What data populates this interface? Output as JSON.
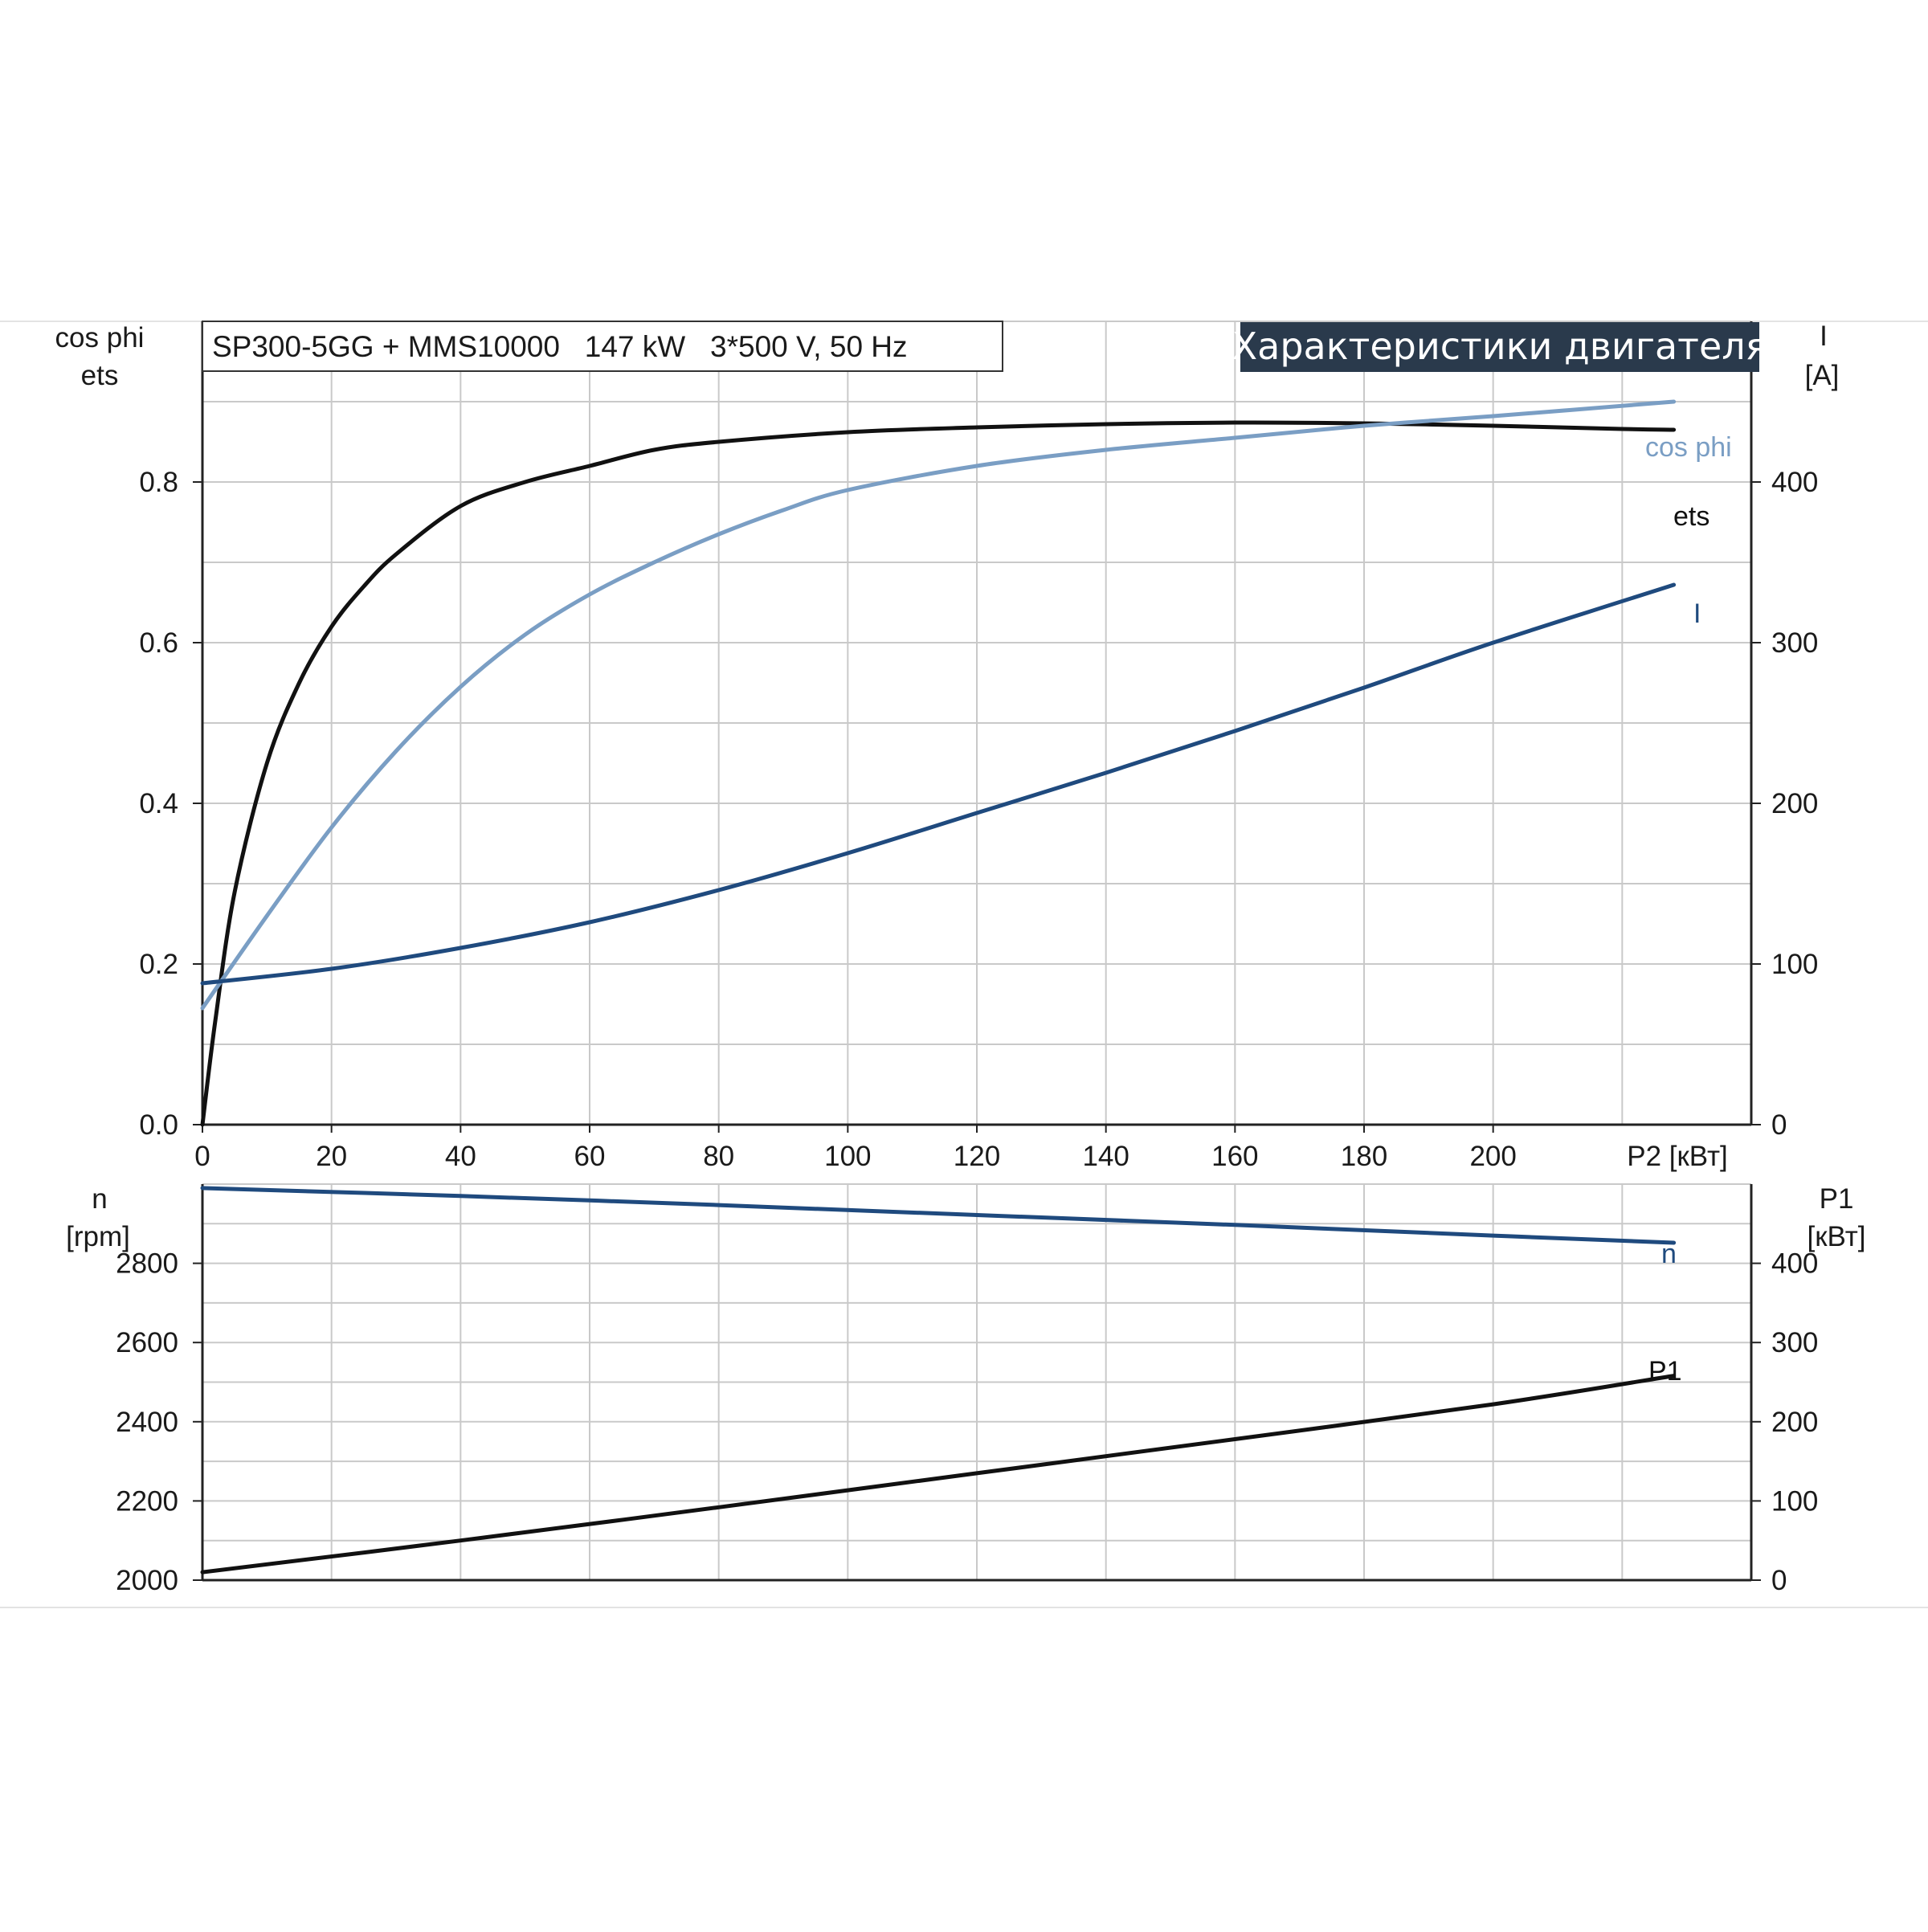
{
  "title_box": "SP300-5GG + MMS10000   147 kW   3*500 V, 50 Hz",
  "badge": "Характеристики двигателя",
  "colors": {
    "black": "#111111",
    "cos_phi": "#7a9ec4",
    "current": "#1f4a7e",
    "speed": "#1f4a7e",
    "power": "#111111",
    "badge_bg": "#2a3a4c",
    "grid": "#c9c9c9"
  },
  "chart_data": [
    {
      "type": "line",
      "x_label": "P2 [кВт]",
      "x_ticks": [
        "0",
        "20",
        "40",
        "60",
        "80",
        "100",
        "120",
        "140",
        "160",
        "180",
        "200"
      ],
      "xlim": [
        0,
        240
      ],
      "left_axis": {
        "label_1": "cos phi",
        "label_2": "ets",
        "ylim": [
          0,
          1.0
        ],
        "ticks": [
          "0.0",
          "0.2",
          "0.4",
          "0.6",
          "0.8"
        ]
      },
      "right_axis": {
        "label_1": "I",
        "label_2": "[A]",
        "ylim": [
          0,
          500
        ],
        "ticks": [
          "0",
          "100",
          "200",
          "300",
          "400"
        ]
      },
      "series": [
        {
          "name": "ets",
          "axis": "left",
          "color_key": "black",
          "x": [
            0,
            2,
            5,
            10,
            15,
            20,
            25,
            30,
            40,
            50,
            60,
            70,
            80,
            100,
            120,
            140,
            160,
            180,
            200,
            220,
            228
          ],
          "y": [
            0.0,
            0.13,
            0.29,
            0.45,
            0.55,
            0.62,
            0.67,
            0.71,
            0.77,
            0.8,
            0.82,
            0.84,
            0.85,
            0.862,
            0.868,
            0.872,
            0.874,
            0.873,
            0.87,
            0.866,
            0.865
          ]
        },
        {
          "name": "cos phi",
          "axis": "left",
          "color_key": "cos_phi",
          "x": [
            0,
            10,
            20,
            30,
            40,
            50,
            60,
            70,
            80,
            90,
            100,
            120,
            140,
            160,
            180,
            200,
            228
          ],
          "y": [
            0.145,
            0.26,
            0.37,
            0.465,
            0.545,
            0.61,
            0.66,
            0.7,
            0.735,
            0.765,
            0.79,
            0.82,
            0.84,
            0.855,
            0.87,
            0.882,
            0.9
          ]
        },
        {
          "name": "I",
          "axis": "right",
          "color_key": "current",
          "x": [
            0,
            20,
            40,
            60,
            80,
            100,
            120,
            140,
            160,
            180,
            200,
            228
          ],
          "y": [
            88,
            97,
            110,
            126,
            146,
            169,
            194,
            219,
            245,
            272,
            300,
            336
          ]
        }
      ]
    },
    {
      "type": "line",
      "xlim": [
        0,
        240
      ],
      "left_axis": {
        "label_1": "n",
        "label_2": "[rpm]",
        "ylim": [
          2000,
          3000
        ],
        "ticks": [
          "2000",
          "2200",
          "2400",
          "2600",
          "2800"
        ]
      },
      "right_axis": {
        "label_1": "P1",
        "label_2": "[кВт]",
        "ylim": [
          0,
          500
        ],
        "ticks": [
          "0",
          "100",
          "200",
          "300",
          "400"
        ]
      },
      "series": [
        {
          "name": "n",
          "axis": "left",
          "color_key": "speed",
          "x": [
            0,
            40,
            80,
            120,
            160,
            200,
            228
          ],
          "y": [
            2990,
            2970,
            2947,
            2922,
            2897,
            2870,
            2852
          ]
        },
        {
          "name": "P1",
          "axis": "right",
          "color_key": "power",
          "x": [
            0,
            40,
            80,
            120,
            160,
            200,
            228
          ],
          "y": [
            10,
            50,
            92,
            135,
            178,
            222,
            258
          ]
        }
      ]
    }
  ]
}
